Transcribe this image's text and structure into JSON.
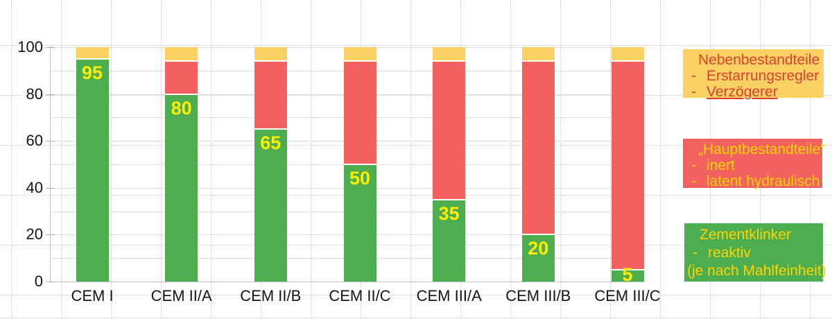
{
  "chart_data": {
    "type": "bar",
    "stacked": true,
    "title": "",
    "categories": [
      "CEM I",
      "CEM II/A",
      "CEM II/B",
      "CEM II/C",
      "CEM III/A",
      "CEM III/B",
      "CEM III/C"
    ],
    "series": [
      {
        "name": "Zementklinker",
        "color": "#4cae4f",
        "values": [
          95,
          80,
          65,
          50,
          35,
          20,
          5
        ]
      },
      {
        "name": "Hauptbestandteile",
        "color": "#f4625f",
        "values": [
          0,
          14,
          29,
          44,
          59,
          74,
          89
        ]
      },
      {
        "name": "Nebenbestandteile",
        "color": "#fbd164",
        "values": [
          5,
          6,
          6,
          6,
          6,
          6,
          6
        ]
      }
    ],
    "data_labels": [
      "95",
      "80",
      "65",
      "50",
      "35",
      "20",
      "5"
    ],
    "data_label_color": "#ffee00",
    "xlabel": "",
    "ylabel": "",
    "ylim": [
      0,
      100
    ],
    "yticks": [
      "0",
      "20",
      "40",
      "60",
      "80",
      "100"
    ],
    "grid": "horizontal, every 10 units",
    "legend_position": "right"
  },
  "legend": {
    "boxes": [
      {
        "id": "nebenbestandteile",
        "bg": "#fbd164",
        "text_color": "#e23e2d",
        "title": "Nebenbestandteile",
        "items": [
          {
            "dash": "-",
            "text": "Erstarrungsregler",
            "underline": false
          },
          {
            "dash": "-",
            "text": "Verzögerer",
            "underline": true
          }
        ],
        "footer": ""
      },
      {
        "id": "hauptbestandteile",
        "bg": "#f4625f",
        "text_color": "#ffd400",
        "title": "„Hauptbestandteile“",
        "items": [
          {
            "dash": "-",
            "text": "inert",
            "underline": false
          },
          {
            "dash": "-",
            "text": "latent hydraulisch",
            "underline": false
          }
        ],
        "footer": ""
      },
      {
        "id": "zementklinker",
        "bg": "#4cae4f",
        "text_color": "#ffd400",
        "title": "Zementklinker",
        "items": [
          {
            "dash": "-",
            "text": "reaktiv",
            "underline": false
          }
        ],
        "footer": "(je nach Mahlfeinheit)"
      }
    ]
  },
  "colors": {
    "grid_solid": "#dcdcdc",
    "grid_dotted": "#c9c9c9",
    "axis": "#bdbdbd",
    "axis_text": "#141414"
  }
}
